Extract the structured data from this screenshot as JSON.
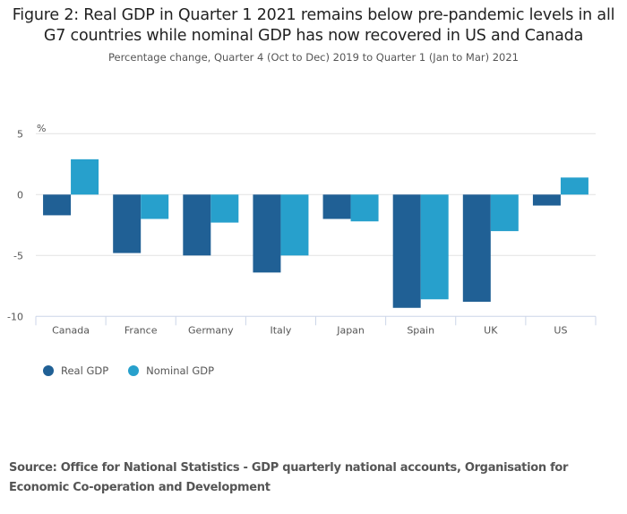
{
  "header": {
    "title": "Figure 2: Real GDP in Quarter 1 2021 remains below pre-pandemic levels in all G7 countries while nominal GDP has now recovered in US and Canada",
    "subtitle": "Percentage change, Quarter 4 (Oct to Dec) 2019 to Quarter 1 (Jan to Mar) 2021"
  },
  "footer": {
    "source": "Source: Office for National Statistics - GDP quarterly national accounts, Organisation for Economic Co-operation and Development"
  },
  "chart_data": {
    "type": "bar",
    "title": "Figure 2: Real GDP in Quarter 1 2021 remains below pre-pandemic levels in all G7 countries while nominal GDP has now recovered in US and Canada",
    "subtitle": "Percentage change, Quarter 4 (Oct to Dec) 2019 to Quarter 1 (Jan to Mar) 2021",
    "xlabel": "",
    "ylabel": "%",
    "categories": [
      "Canada",
      "France",
      "Germany",
      "Italy",
      "Japan",
      "Spain",
      "UK",
      "US"
    ],
    "series": [
      {
        "name": "Real GDP",
        "color": "#206095",
        "values": [
          -1.7,
          -4.8,
          -5.0,
          -6.4,
          -2.0,
          -9.3,
          -8.8,
          -0.9
        ]
      },
      {
        "name": "Nominal GDP",
        "color": "#27A0CC",
        "values": [
          2.9,
          -2.0,
          -2.3,
          -5.0,
          -2.2,
          -8.6,
          -3.0,
          1.4
        ]
      }
    ],
    "ylim": [
      -10,
      5
    ],
    "yticks": [
      5,
      0,
      -5,
      -10
    ],
    "grid": true,
    "legend_position": "bottom-left"
  }
}
